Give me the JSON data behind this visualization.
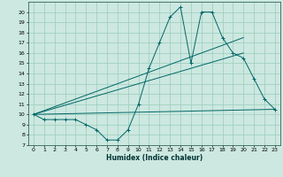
{
  "xlabel": "Humidex (Indice chaleur)",
  "background_color": "#cce8e0",
  "line_color": "#006666",
  "grid_color": "#99ccbb",
  "xlim": [
    -0.5,
    23.5
  ],
  "ylim": [
    7,
    21
  ],
  "yticks": [
    7,
    8,
    9,
    10,
    11,
    12,
    13,
    14,
    15,
    16,
    17,
    18,
    19,
    20
  ],
  "xticks": [
    0,
    1,
    2,
    3,
    4,
    5,
    6,
    7,
    8,
    9,
    10,
    11,
    12,
    13,
    14,
    15,
    16,
    17,
    18,
    19,
    20,
    21,
    22,
    23
  ],
  "series1_x": [
    0,
    1,
    2,
    3,
    4,
    5,
    6,
    7,
    8,
    9,
    10,
    11,
    12,
    13,
    14,
    15,
    16,
    17,
    18,
    19,
    20,
    21,
    22,
    23
  ],
  "series1_y": [
    10,
    9.5,
    9.5,
    9.5,
    9.5,
    9,
    8.5,
    7.5,
    7.5,
    8.5,
    11,
    14.5,
    17,
    19.5,
    20.5,
    15,
    20,
    20,
    17.5,
    16,
    15.5,
    13.5,
    11.5,
    10.5
  ],
  "series2_x": [
    0,
    23
  ],
  "series2_y": [
    10,
    10.5
  ],
  "series3_x": [
    0,
    20
  ],
  "series3_y": [
    10,
    16
  ],
  "series4_x": [
    0,
    20
  ],
  "series4_y": [
    10,
    17.5
  ]
}
